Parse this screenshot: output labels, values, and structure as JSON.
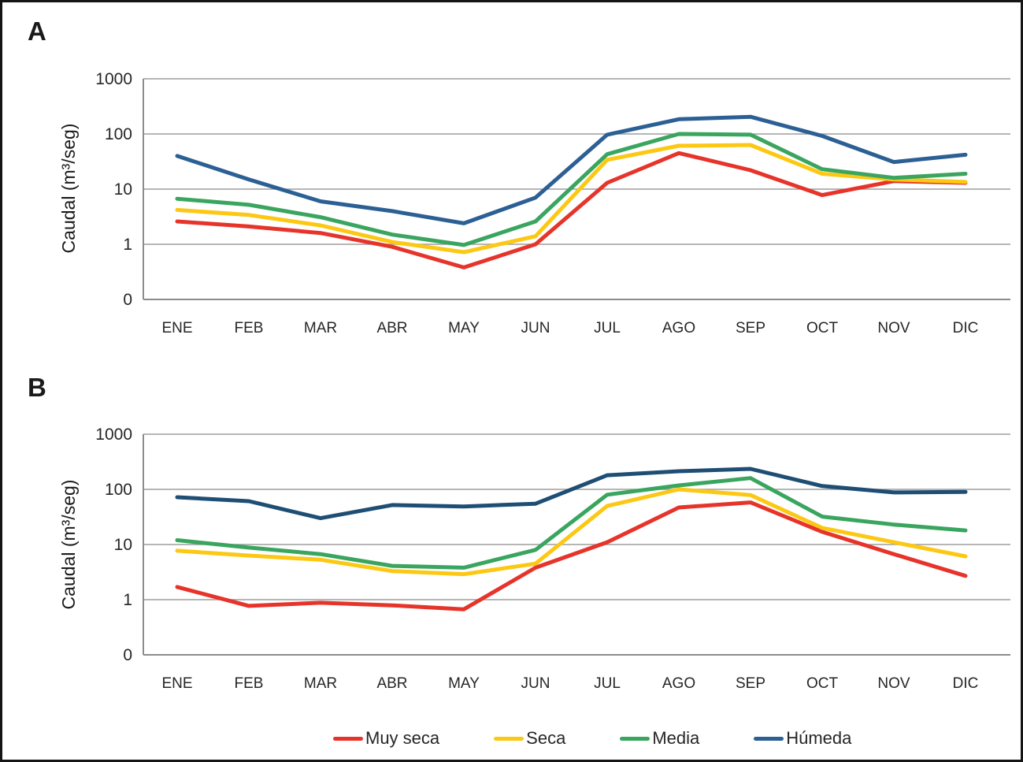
{
  "figure": {
    "panels": [
      {
        "label": "A"
      },
      {
        "label": "B"
      }
    ]
  },
  "chart_data": [
    {
      "type": "line",
      "panel": "A",
      "title": "",
      "xlabel": "",
      "ylabel": "Caudal (m³/seg)",
      "yscale": "log",
      "ylim": [
        0.1,
        1000
      ],
      "yticks": [
        "1000",
        "100",
        "10",
        "1",
        "0"
      ],
      "grid": true,
      "categories": [
        "ENE",
        "FEB",
        "MAR",
        "ABR",
        "MAY",
        "JUN",
        "JUL",
        "AGO",
        "SEP",
        "OCT",
        "NOV",
        "DIC"
      ],
      "series": [
        {
          "name": "Muy seca",
          "color": "#e6342b",
          "values": [
            2.6,
            2.1,
            1.6,
            0.9,
            0.38,
            1.0,
            13,
            45,
            22,
            7.8,
            14,
            13
          ]
        },
        {
          "name": "Seca",
          "color": "#fcc813",
          "values": [
            4.2,
            3.4,
            2.2,
            1.1,
            0.72,
            1.4,
            34,
            61,
            63,
            19,
            15,
            13.5
          ]
        },
        {
          "name": "Media",
          "color": "#3aa55f",
          "values": [
            6.7,
            5.2,
            3.1,
            1.5,
            0.97,
            2.6,
            43,
            100,
            97,
            23,
            16,
            19
          ]
        },
        {
          "name": "Húmeda",
          "color": "#2c6094",
          "values": [
            40,
            15,
            6.0,
            4.0,
            2.4,
            7.0,
            97,
            185,
            205,
            92,
            31,
            42
          ]
        }
      ]
    },
    {
      "type": "line",
      "panel": "B",
      "title": "",
      "xlabel": "",
      "ylabel": "Caudal (m³/seg)",
      "yscale": "log",
      "ylim": [
        0.1,
        1000
      ],
      "yticks": [
        "1000",
        "100",
        "10",
        "1",
        "0"
      ],
      "grid": true,
      "categories": [
        "ENE",
        "FEB",
        "MAR",
        "ABR",
        "MAY",
        "JUN",
        "JUL",
        "AGO",
        "SEP",
        "OCT",
        "NOV",
        "DIC"
      ],
      "series": [
        {
          "name": "Muy seca",
          "color": "#e6342b",
          "values": [
            1.7,
            0.77,
            0.88,
            0.79,
            0.67,
            3.8,
            11,
            47,
            58,
            17,
            6.7,
            2.7
          ]
        },
        {
          "name": "Seca",
          "color": "#fcc813",
          "values": [
            7.7,
            6.3,
            5.3,
            3.3,
            2.9,
            4.5,
            50,
            100,
            79,
            20,
            11,
            6.1
          ]
        },
        {
          "name": "Media",
          "color": "#3aa55f",
          "values": [
            12,
            8.8,
            6.7,
            4.1,
            3.8,
            8.0,
            80,
            118,
            160,
            32,
            23,
            18
          ]
        },
        {
          "name": "Húmeda",
          "color": "#1f4e74",
          "values": [
            72,
            61,
            30,
            52,
            49,
            55,
            180,
            213,
            235,
            115,
            88,
            90
          ]
        }
      ]
    }
  ],
  "legend": {
    "position": "bottom-center",
    "items": [
      {
        "label": "Muy seca",
        "color": "#e6342b"
      },
      {
        "label": "Seca",
        "color": "#fcc813"
      },
      {
        "label": "Media",
        "color": "#3aa55f"
      },
      {
        "label": "Húmeda",
        "color": "#2c6094"
      }
    ]
  },
  "style": {
    "gridline_color": "#9d9d9d",
    "axis_color": "#8c8c8c"
  }
}
